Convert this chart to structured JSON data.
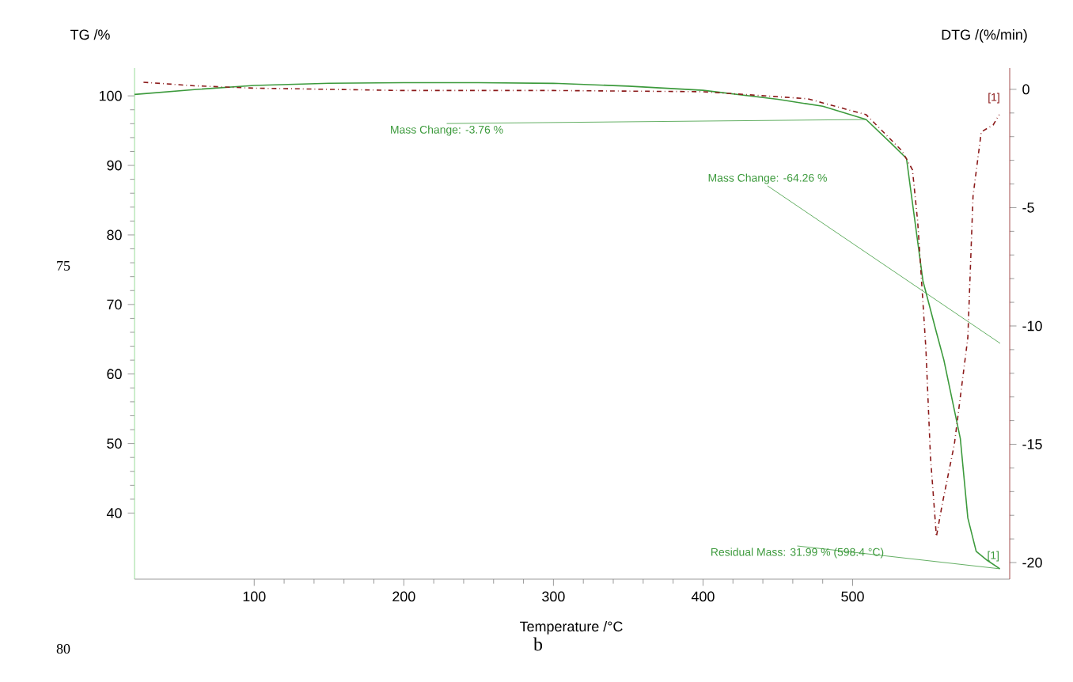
{
  "chart_data": {
    "type": "line",
    "xlabel": "Temperature /°C",
    "ylabel": "TG /%",
    "y2label": "DTG /(%/min)",
    "xlim": [
      20,
      605
    ],
    "xticks": [
      100,
      200,
      300,
      400,
      500
    ],
    "ylim": [
      30.5,
      104
    ],
    "yticks": [
      40,
      50,
      60,
      70,
      80,
      90,
      100
    ],
    "y2lim": [
      -20.7,
      0.9
    ],
    "y2ticks": [
      -20,
      -15,
      -10,
      -5,
      0
    ],
    "grid": false,
    "series": [
      {
        "color": "#3c9a3c",
        "line_style": "solid",
        "x": [
          20,
          60,
          100,
          150,
          200,
          250,
          300,
          350,
          400,
          450,
          480,
          509,
          525.6,
          536,
          547,
          556,
          561,
          572,
          577,
          582.6,
          590,
          598.4
        ],
        "values": [
          100.2,
          100.9,
          101.5,
          101.8,
          101.9,
          101.9,
          101.8,
          101.4,
          100.8,
          99.5,
          98.5,
          96.6,
          93.2,
          91,
          73.4,
          66,
          62,
          50.7,
          39.3,
          34.5,
          33.2,
          32
        ]
      },
      {
        "color": "#8b1a1a",
        "line_style": "dashdot",
        "axis": "y2",
        "x": [
          26,
          60,
          100,
          200,
          300,
          400,
          470,
          509,
          533,
          540,
          543.5,
          547,
          549,
          552,
          556,
          560,
          568,
          577,
          580.5,
          586,
          594,
          598
        ],
        "values": [
          0.3,
          0.15,
          0.05,
          -0.05,
          -0.05,
          -0.1,
          -0.4,
          -1.07,
          -2.6,
          -3.4,
          -5.6,
          -9,
          -11,
          -15.5,
          -18.9,
          -17.5,
          -15,
          -10.5,
          -4.5,
          -1.8,
          -1.5,
          -1.07
        ]
      }
    ],
    "annotations": [
      {
        "text": "Mass Change: -3.76 %",
        "x": 509,
        "y": 96.6
      },
      "Mass Change: -64.26 %",
      {
        "text": "Residual Mass: 31.99 % (598.4 °C)",
        "x": 598.4,
        "y": 31.99
      },
      "[1]",
      {
        "text": "[1]",
        "x": 594,
        "y": 33.8
      },
      "75",
      "80",
      "b"
    ]
  }
}
